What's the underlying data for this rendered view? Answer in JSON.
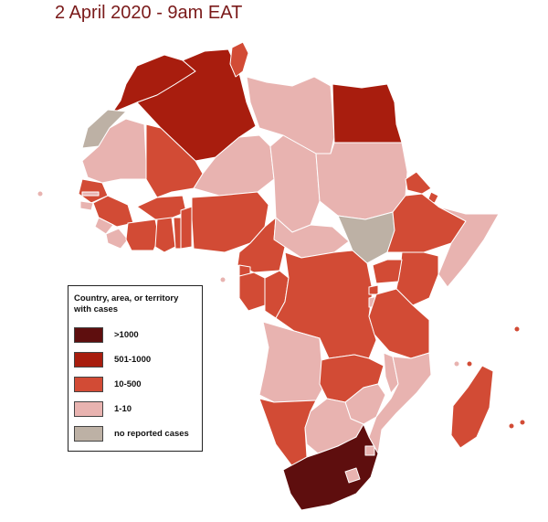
{
  "title": "2 April 2020 - 9am EAT",
  "colors": {
    "over_1000": "#5e0e0e",
    "c501_1000": "#a81d0e",
    "c10_500": "#d24b35",
    "c1_10": "#e8b3b0",
    "none": "#bdb1a5",
    "border": "#ffffff"
  },
  "legend": {
    "title": "Country, area, or territory with cases",
    "items": [
      {
        "label": ">1000",
        "category": "over_1000"
      },
      {
        "label": "501-1000",
        "category": "c501_1000"
      },
      {
        "label": "10-500",
        "category": "c10_500"
      },
      {
        "label": "1-10",
        "category": "c1_10"
      },
      {
        "label": "no reported cases",
        "category": "none"
      }
    ]
  }
}
